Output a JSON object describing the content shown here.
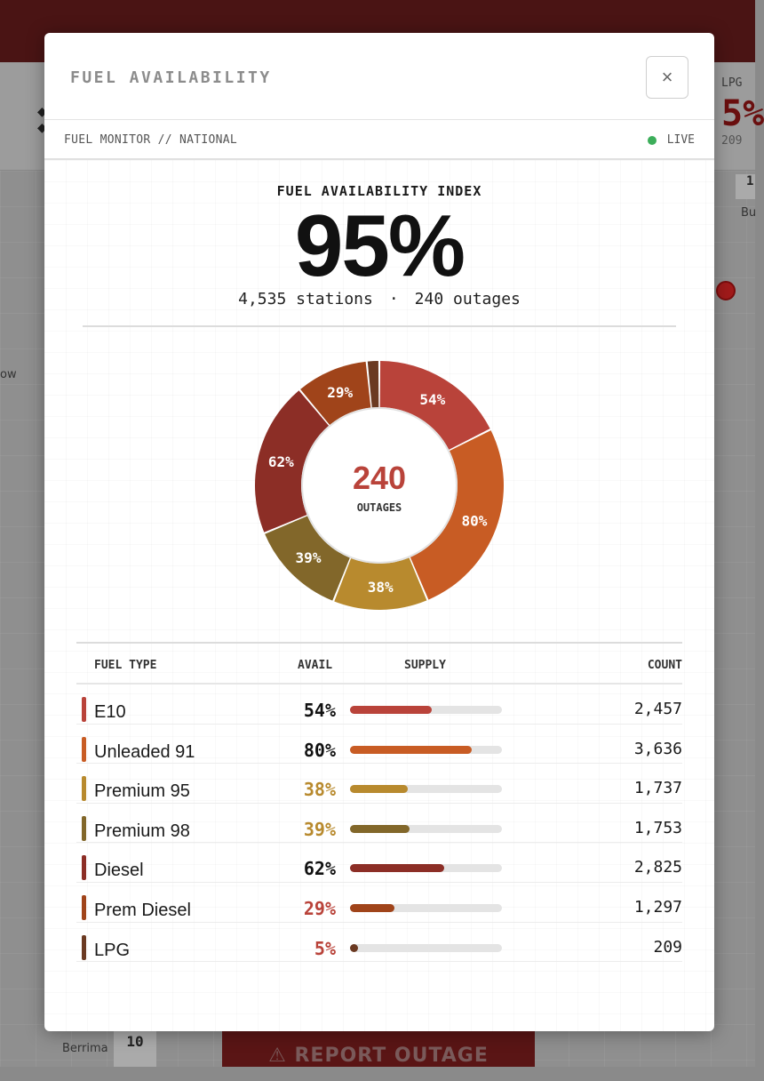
{
  "background": {
    "lpg_label": "LPG",
    "lpg_value": "5%",
    "lpg_count": "209",
    "map_label_ow": "ow",
    "map_label_bu": "Bu",
    "map_label_berrima": "Berrima",
    "map_count_box": "10",
    "map_count_box_top": "1",
    "report_button": "⚠ REPORT OUTAGE"
  },
  "modal": {
    "title": "FUEL AVAILABILITY",
    "close_label": "×",
    "breadcrumb": "FUEL MONITOR // NATIONAL",
    "live_label": "LIVE",
    "index_label": "FUEL AVAILABILITY INDEX",
    "index_value": "95%",
    "stations_text": "4,535 stations",
    "separator": "·",
    "outages_text": "240 outages",
    "donut_center_value": "240",
    "donut_center_label": "OUTAGES",
    "table_headers": {
      "fuel_type": "FUEL TYPE",
      "avail": "AVAIL",
      "supply": "SUPPLY",
      "count": "COUNT"
    }
  },
  "colors": {
    "e10": "#b9433a",
    "unleaded91": "#c85c24",
    "premium95": "#b88a2e",
    "premium98": "#82672a",
    "diesel": "#8c2e26",
    "premdiesel": "#a0441a",
    "lpg": "#6b3a22",
    "avail_dark": "#111111",
    "avail_gold": "#b88a2e",
    "avail_red": "#b9433a"
  },
  "fuels": [
    {
      "name": "E10",
      "avail": "54%",
      "pct": 54,
      "count": "2,457",
      "color_key": "e10",
      "avail_color": "avail_dark"
    },
    {
      "name": "Unleaded 91",
      "avail": "80%",
      "pct": 80,
      "count": "3,636",
      "color_key": "unleaded91",
      "avail_color": "avail_dark"
    },
    {
      "name": "Premium 95",
      "avail": "38%",
      "pct": 38,
      "count": "1,737",
      "color_key": "premium95",
      "avail_color": "avail_gold"
    },
    {
      "name": "Premium 98",
      "avail": "39%",
      "pct": 39,
      "count": "1,753",
      "color_key": "premium98",
      "avail_color": "avail_gold"
    },
    {
      "name": "Diesel",
      "avail": "62%",
      "pct": 62,
      "count": "2,825",
      "color_key": "diesel",
      "avail_color": "avail_dark"
    },
    {
      "name": "Prem Diesel",
      "avail": "29%",
      "pct": 29,
      "count": "1,297",
      "color_key": "premdiesel",
      "avail_color": "avail_red"
    },
    {
      "name": "LPG",
      "avail": "5%",
      "pct": 5,
      "count": "209",
      "color_key": "lpg",
      "avail_color": "avail_red"
    }
  ],
  "icons": {
    "close": "close-icon",
    "live": "live-dot-icon",
    "warning": "warning-icon"
  }
}
